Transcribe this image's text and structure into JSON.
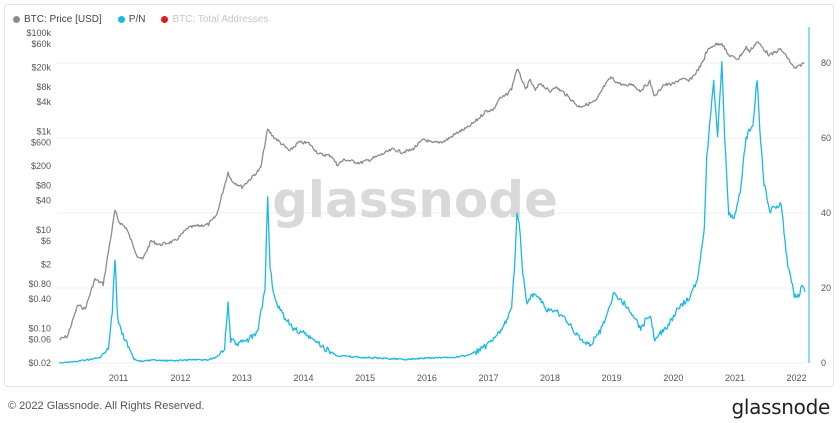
{
  "legend": {
    "items": [
      {
        "label": "BTC: Price [USD]",
        "color": "#8c8c8c",
        "enabled": true
      },
      {
        "label": "P/N",
        "color": "#1ab8e6",
        "enabled": true
      },
      {
        "label": "BTC: Total Addresses",
        "color": "#e11b1b",
        "enabled": false
      }
    ]
  },
  "watermark": "glassnode",
  "footer": {
    "copyright": "© 2022 Glassnode. All Rights Reserved.",
    "brand": "glassnode"
  },
  "chart_data": {
    "type": "line",
    "x_axis": {
      "type": "date",
      "range": [
        "2010-07-01",
        "2022-08-20"
      ],
      "ticks": [
        "2011",
        "2012",
        "2013",
        "2014",
        "2015",
        "2016",
        "2017",
        "2018",
        "2019",
        "2020",
        "2021",
        "2022"
      ]
    },
    "y_left": {
      "scale": "log",
      "range": [
        0.02,
        100000
      ],
      "ticks": [
        {
          "v": 100000,
          "label": "$100k"
        },
        {
          "v": 60000,
          "label": "$60k"
        },
        {
          "v": 20000,
          "label": "$20k"
        },
        {
          "v": 8000,
          "label": "$8k"
        },
        {
          "v": 4000,
          "label": "$4k"
        },
        {
          "v": 1000,
          "label": "$1k"
        },
        {
          "v": 600,
          "label": "$600"
        },
        {
          "v": 200,
          "label": "$200"
        },
        {
          "v": 80,
          "label": "$80"
        },
        {
          "v": 40,
          "label": "$40"
        },
        {
          "v": 10,
          "label": "$10"
        },
        {
          "v": 6,
          "label": "$6"
        },
        {
          "v": 2,
          "label": "$2"
        },
        {
          "v": 0.8,
          "label": "$0.80"
        },
        {
          "v": 0.4,
          "label": "$0.40"
        },
        {
          "v": 0.1,
          "label": "$0.10"
        },
        {
          "v": 0.06,
          "label": "$0.06"
        },
        {
          "v": 0.02,
          "label": "$0.02"
        }
      ]
    },
    "y_right": {
      "scale": "linear",
      "range": [
        0,
        88
      ],
      "ticks": [
        {
          "v": 0,
          "label": "0"
        },
        {
          "v": 20,
          "label": "20"
        },
        {
          "v": 40,
          "label": "40"
        },
        {
          "v": 60,
          "label": "60"
        },
        {
          "v": 80,
          "label": "80"
        }
      ]
    },
    "grid": "horizontal",
    "legend_position": "top-left",
    "series": [
      {
        "name": "BTC: Price [USD]",
        "axis": "left",
        "color": "#8c8c8c",
        "points": [
          [
            "2010-07-15",
            0.06
          ],
          [
            "2010-09-01",
            0.07
          ],
          [
            "2010-11-01",
            0.3
          ],
          [
            "2010-12-15",
            0.25
          ],
          [
            "2011-02-10",
            1.0
          ],
          [
            "2011-04-01",
            0.8
          ],
          [
            "2011-05-15",
            7
          ],
          [
            "2011-06-10",
            25
          ],
          [
            "2011-07-01",
            15
          ],
          [
            "2011-08-15",
            11
          ],
          [
            "2011-10-20",
            3
          ],
          [
            "2011-11-20",
            2.5
          ],
          [
            "2012-01-10",
            6
          ],
          [
            "2012-03-01",
            5
          ],
          [
            "2012-06-01",
            6
          ],
          [
            "2012-08-15",
            11
          ],
          [
            "2012-10-01",
            12
          ],
          [
            "2012-12-15",
            13
          ],
          [
            "2013-02-01",
            20
          ],
          [
            "2013-04-10",
            150
          ],
          [
            "2013-05-01",
            100
          ],
          [
            "2013-07-01",
            75
          ],
          [
            "2013-09-01",
            120
          ],
          [
            "2013-10-20",
            180
          ],
          [
            "2013-11-30",
            1100
          ],
          [
            "2014-01-01",
            800
          ],
          [
            "2014-02-25",
            550
          ],
          [
            "2014-04-10",
            400
          ],
          [
            "2014-06-01",
            600
          ],
          [
            "2014-08-01",
            580
          ],
          [
            "2014-10-01",
            350
          ],
          [
            "2014-12-15",
            320
          ],
          [
            "2015-01-15",
            210
          ],
          [
            "2015-03-01",
            270
          ],
          [
            "2015-06-01",
            230
          ],
          [
            "2015-08-01",
            270
          ],
          [
            "2015-11-05",
            380
          ],
          [
            "2015-12-15",
            440
          ],
          [
            "2016-02-01",
            380
          ],
          [
            "2016-04-01",
            420
          ],
          [
            "2016-06-15",
            700
          ],
          [
            "2016-08-01",
            580
          ],
          [
            "2016-10-15",
            640
          ],
          [
            "2016-12-31",
            960
          ],
          [
            "2017-03-01",
            1200
          ],
          [
            "2017-05-01",
            1800
          ],
          [
            "2017-06-15",
            2600
          ],
          [
            "2017-08-01",
            2800
          ],
          [
            "2017-09-01",
            4500
          ],
          [
            "2017-10-15",
            5500
          ],
          [
            "2017-11-15",
            7500
          ],
          [
            "2017-12-17",
            19000
          ],
          [
            "2018-01-15",
            11500
          ],
          [
            "2018-02-05",
            7000
          ],
          [
            "2018-03-05",
            11000
          ],
          [
            "2018-04-05",
            6800
          ],
          [
            "2018-05-05",
            9700
          ],
          [
            "2018-07-01",
            6300
          ],
          [
            "2018-07-25",
            8200
          ],
          [
            "2018-09-15",
            6400
          ],
          [
            "2018-11-25",
            3800
          ],
          [
            "2018-12-15",
            3200
          ],
          [
            "2019-02-01",
            3500
          ],
          [
            "2019-04-01",
            4200
          ],
          [
            "2019-05-15",
            8000
          ],
          [
            "2019-06-26",
            12500
          ],
          [
            "2019-08-01",
            10000
          ],
          [
            "2019-09-25",
            8300
          ],
          [
            "2019-10-26",
            9500
          ],
          [
            "2019-12-17",
            6700
          ],
          [
            "2020-02-13",
            10300
          ],
          [
            "2020-03-13",
            5000
          ],
          [
            "2020-05-01",
            8800
          ],
          [
            "2020-07-01",
            9200
          ],
          [
            "2020-08-15",
            11800
          ],
          [
            "2020-10-01",
            10600
          ],
          [
            "2020-11-15",
            16000
          ],
          [
            "2020-12-31",
            29000
          ],
          [
            "2021-01-08",
            40000
          ],
          [
            "2021-02-20",
            56000
          ],
          [
            "2021-04-14",
            63000
          ],
          [
            "2021-05-19",
            37000
          ],
          [
            "2021-06-22",
            32000
          ],
          [
            "2021-07-20",
            30000
          ],
          [
            "2021-09-06",
            51000
          ],
          [
            "2021-09-25",
            42000
          ],
          [
            "2021-11-10",
            67000
          ],
          [
            "2021-12-20",
            47000
          ],
          [
            "2022-01-22",
            35000
          ],
          [
            "2022-03-28",
            47000
          ],
          [
            "2022-05-10",
            31000
          ],
          [
            "2022-06-18",
            19000
          ],
          [
            "2022-07-15",
            21000
          ],
          [
            "2022-08-01",
            23500
          ],
          [
            "2022-08-15",
            24000
          ]
        ]
      },
      {
        "name": "P/N",
        "axis": "right",
        "color": "#1ab8e6",
        "points": [
          [
            "2010-07-15",
            0.1
          ],
          [
            "2010-10-01",
            0.3
          ],
          [
            "2011-01-15",
            1
          ],
          [
            "2011-03-15",
            1.5
          ],
          [
            "2011-05-01",
            4
          ],
          [
            "2011-05-25",
            14
          ],
          [
            "2011-06-10",
            28
          ],
          [
            "2011-06-25",
            12
          ],
          [
            "2011-07-15",
            9
          ],
          [
            "2011-08-20",
            5
          ],
          [
            "2011-09-30",
            1
          ],
          [
            "2011-11-01",
            0.5
          ],
          [
            "2012-01-15",
            0.7
          ],
          [
            "2012-06-01",
            0.6
          ],
          [
            "2012-09-01",
            0.9
          ],
          [
            "2012-12-01",
            0.8
          ],
          [
            "2013-02-01",
            1.5
          ],
          [
            "2013-03-20",
            4
          ],
          [
            "2013-04-10",
            16
          ],
          [
            "2013-04-25",
            6
          ],
          [
            "2013-06-01",
            5
          ],
          [
            "2013-08-01",
            6
          ],
          [
            "2013-10-01",
            8
          ],
          [
            "2013-11-15",
            20
          ],
          [
            "2013-12-01",
            45
          ],
          [
            "2013-12-15",
            25
          ],
          [
            "2014-01-15",
            16
          ],
          [
            "2014-03-15",
            12
          ],
          [
            "2014-05-01",
            9
          ],
          [
            "2014-07-01",
            8
          ],
          [
            "2014-09-01",
            6
          ],
          [
            "2014-11-01",
            4
          ],
          [
            "2015-01-15",
            2
          ],
          [
            "2015-06-01",
            1.5
          ],
          [
            "2015-11-01",
            1.2
          ],
          [
            "2016-03-01",
            1
          ],
          [
            "2016-07-01",
            1.3
          ],
          [
            "2016-12-01",
            1.5
          ],
          [
            "2017-03-01",
            2
          ],
          [
            "2017-06-01",
            4
          ],
          [
            "2017-08-01",
            6
          ],
          [
            "2017-10-01",
            10
          ],
          [
            "2017-11-15",
            15
          ],
          [
            "2017-12-01",
            25
          ],
          [
            "2017-12-17",
            40
          ],
          [
            "2018-01-05",
            35
          ],
          [
            "2018-01-20",
            24
          ],
          [
            "2018-02-15",
            16
          ],
          [
            "2018-03-15",
            18
          ],
          [
            "2018-05-01",
            17
          ],
          [
            "2018-06-15",
            14
          ],
          [
            "2018-08-01",
            14
          ],
          [
            "2018-10-01",
            12
          ],
          [
            "2018-11-25",
            8
          ],
          [
            "2019-01-01",
            6
          ],
          [
            "2019-03-01",
            5
          ],
          [
            "2019-05-01",
            9
          ],
          [
            "2019-06-26",
            16
          ],
          [
            "2019-07-15",
            19
          ],
          [
            "2019-08-15",
            17
          ],
          [
            "2019-10-01",
            15
          ],
          [
            "2019-11-15",
            12
          ],
          [
            "2019-12-20",
            9
          ],
          [
            "2020-01-15",
            11
          ],
          [
            "2020-02-15",
            13
          ],
          [
            "2020-03-13",
            6
          ],
          [
            "2020-04-15",
            8
          ],
          [
            "2020-06-01",
            10
          ],
          [
            "2020-08-01",
            15
          ],
          [
            "2020-10-01",
            17
          ],
          [
            "2020-11-20",
            22
          ],
          [
            "2020-12-31",
            36
          ],
          [
            "2021-01-15",
            55
          ],
          [
            "2021-02-25",
            75
          ],
          [
            "2021-03-20",
            60
          ],
          [
            "2021-04-14",
            80
          ],
          [
            "2021-05-01",
            60
          ],
          [
            "2021-05-25",
            40
          ],
          [
            "2021-06-25",
            38
          ],
          [
            "2021-08-01",
            46
          ],
          [
            "2021-09-05",
            60
          ],
          [
            "2021-10-15",
            64
          ],
          [
            "2021-11-10",
            76
          ],
          [
            "2021-11-25",
            62
          ],
          [
            "2021-12-20",
            48
          ],
          [
            "2022-01-22",
            40
          ],
          [
            "2022-03-01",
            42
          ],
          [
            "2022-04-01",
            42
          ],
          [
            "2022-05-10",
            26
          ],
          [
            "2022-06-18",
            18
          ],
          [
            "2022-07-15",
            18
          ],
          [
            "2022-08-01",
            21
          ],
          [
            "2022-08-20",
            19
          ]
        ]
      }
    ]
  }
}
